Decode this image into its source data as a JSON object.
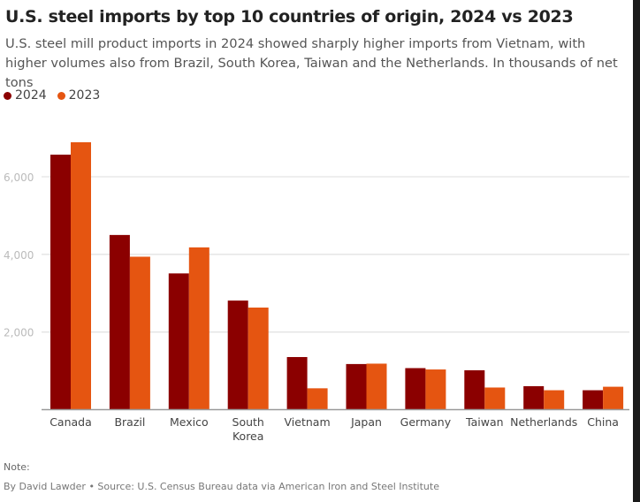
{
  "title": "U.S. steel imports by top 10 countries of origin, 2024 vs 2023",
  "subtitle": "U.S. steel mill product imports in 2024 showed sharply higher imports from Vietnam, with higher volumes also from Brazil, South Korea, Taiwan and the Netherlands. In thousands of net tons",
  "note": "Note:",
  "source": "By David Lawder • Source: U.S. Census Bureau data via American Iron and Steel Institute",
  "colors": {
    "2024": "#8b0000",
    "2023": "#e55511"
  },
  "chart_data": {
    "type": "bar",
    "title": "U.S. steel imports by top 10 countries of origin, 2024 vs 2023",
    "categories": [
      "Canada",
      "Brazil",
      "Mexico",
      "South Korea",
      "Vietnam",
      "Japan",
      "Germany",
      "Taiwan",
      "Netherlands",
      "China"
    ],
    "series": [
      {
        "name": "2024",
        "values": [
          6570,
          4500,
          3510,
          2810,
          1355,
          1175,
          1070,
          1015,
          605,
          500
        ]
      },
      {
        "name": "2023",
        "values": [
          6890,
          3940,
          4180,
          2630,
          550,
          1185,
          1035,
          570,
          500,
          590
        ]
      }
    ],
    "ylim": [
      0,
      7000
    ],
    "yticks": [
      2000,
      4000,
      6000
    ],
    "ytick_labels": [
      "2,000",
      "4,000",
      "6,000"
    ],
    "grid": true,
    "legend": "top-left",
    "xlabel": "",
    "ylabel": ""
  }
}
